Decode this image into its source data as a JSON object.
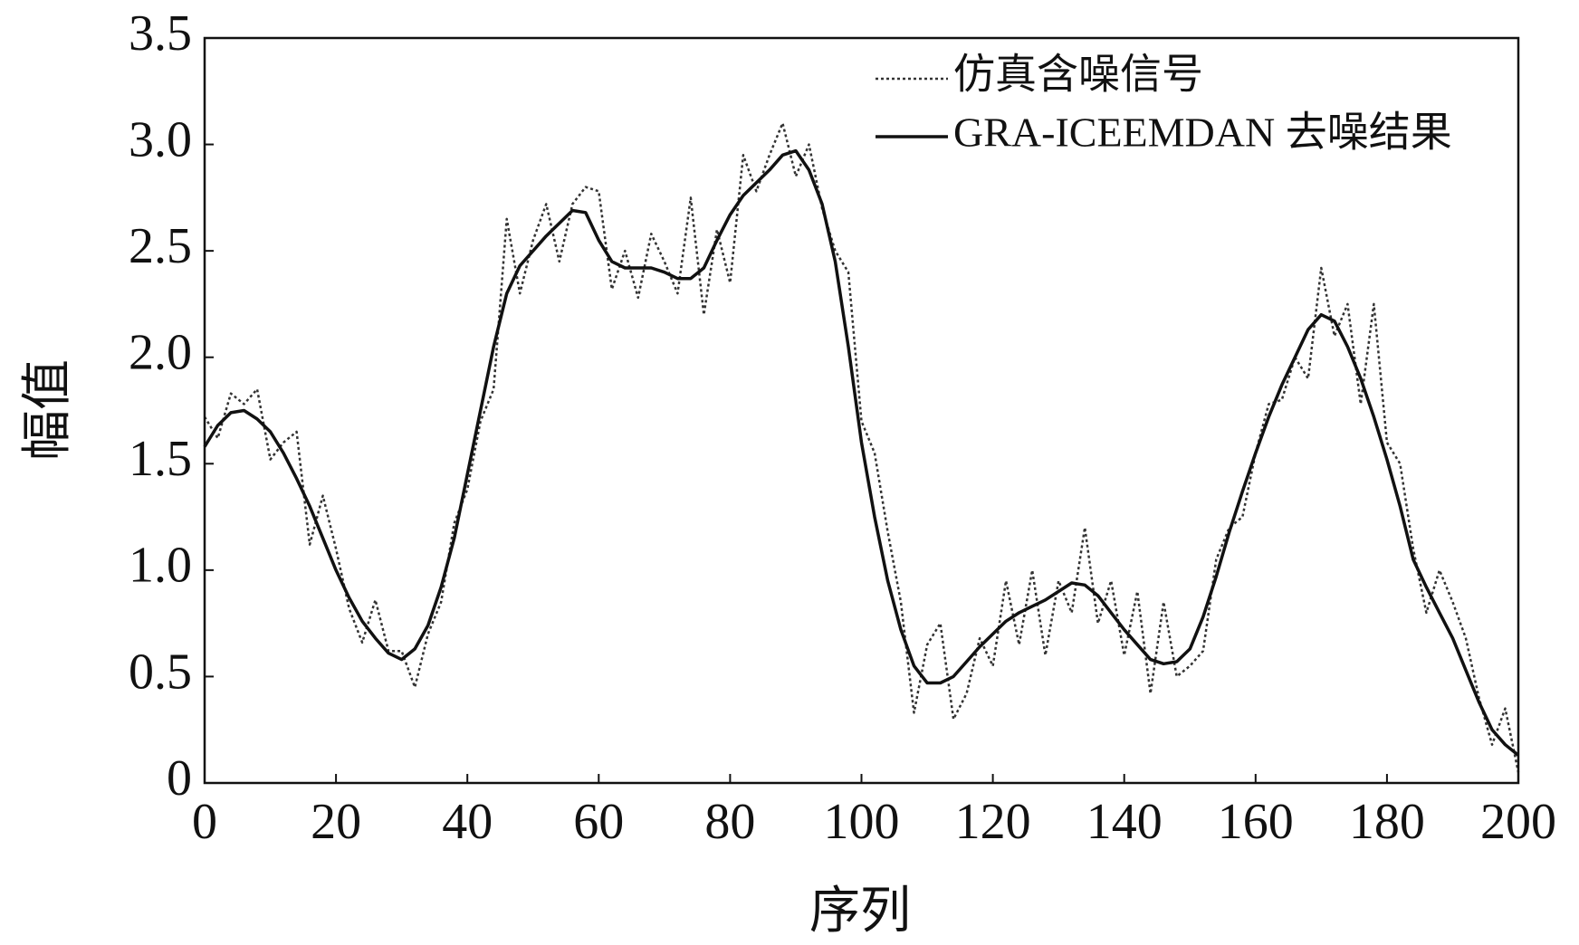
{
  "chart_data": {
    "type": "line",
    "xlabel": "序列",
    "ylabel": "幅值",
    "x": [
      0,
      2,
      4,
      6,
      8,
      10,
      12,
      14,
      16,
      18,
      20,
      22,
      24,
      26,
      28,
      30,
      32,
      34,
      36,
      38,
      40,
      42,
      44,
      46,
      48,
      50,
      52,
      54,
      56,
      58,
      60,
      62,
      64,
      66,
      68,
      70,
      72,
      74,
      76,
      78,
      80,
      82,
      84,
      86,
      88,
      90,
      92,
      94,
      96,
      98,
      100,
      102,
      104,
      106,
      108,
      110,
      112,
      114,
      116,
      118,
      120,
      122,
      124,
      126,
      128,
      130,
      132,
      134,
      136,
      138,
      140,
      142,
      144,
      146,
      148,
      150,
      152,
      154,
      156,
      158,
      160,
      162,
      164,
      166,
      168,
      170,
      172,
      174,
      176,
      178,
      180,
      182,
      184,
      186,
      188,
      190,
      192,
      194,
      196,
      198,
      200
    ],
    "series": [
      {
        "name": "仿真含噪信号",
        "color": "#333333",
        "style": "dotted",
        "values": [
          1.72,
          1.62,
          1.83,
          1.78,
          1.85,
          1.52,
          1.6,
          1.65,
          1.12,
          1.35,
          1.1,
          0.82,
          0.66,
          0.86,
          0.62,
          0.62,
          0.45,
          0.7,
          0.85,
          1.22,
          1.38,
          1.7,
          1.85,
          2.65,
          2.3,
          2.55,
          2.72,
          2.45,
          2.72,
          2.8,
          2.78,
          2.32,
          2.5,
          2.28,
          2.58,
          2.45,
          2.3,
          2.75,
          2.2,
          2.6,
          2.35,
          2.95,
          2.78,
          2.95,
          3.1,
          2.85,
          3.0,
          2.7,
          2.5,
          2.4,
          1.7,
          1.55,
          1.18,
          0.85,
          0.33,
          0.65,
          0.75,
          0.3,
          0.42,
          0.68,
          0.55,
          0.95,
          0.65,
          1.0,
          0.6,
          0.95,
          0.8,
          1.2,
          0.75,
          0.95,
          0.6,
          0.9,
          0.42,
          0.85,
          0.5,
          0.55,
          0.62,
          1.05,
          1.2,
          1.25,
          1.55,
          1.78,
          1.8,
          2.0,
          1.9,
          2.42,
          2.1,
          2.25,
          1.78,
          2.25,
          1.6,
          1.5,
          1.1,
          0.8,
          1.0,
          0.85,
          0.68,
          0.4,
          0.18,
          0.35,
          0.05
        ]
      },
      {
        "name": "GRA-ICEEMDAN 去噪结果",
        "color": "#111111",
        "style": "solid",
        "values": [
          1.58,
          1.68,
          1.74,
          1.75,
          1.71,
          1.65,
          1.55,
          1.43,
          1.3,
          1.15,
          1.0,
          0.87,
          0.76,
          0.68,
          0.61,
          0.58,
          0.63,
          0.74,
          0.92,
          1.15,
          1.45,
          1.75,
          2.05,
          2.3,
          2.43,
          2.5,
          2.57,
          2.63,
          2.69,
          2.68,
          2.55,
          2.45,
          2.42,
          2.42,
          2.42,
          2.4,
          2.37,
          2.37,
          2.42,
          2.55,
          2.67,
          2.76,
          2.82,
          2.88,
          2.95,
          2.97,
          2.88,
          2.72,
          2.45,
          2.05,
          1.6,
          1.25,
          0.95,
          0.72,
          0.55,
          0.47,
          0.47,
          0.5,
          0.57,
          0.64,
          0.7,
          0.76,
          0.8,
          0.83,
          0.86,
          0.9,
          0.94,
          0.93,
          0.88,
          0.8,
          0.72,
          0.65,
          0.58,
          0.56,
          0.57,
          0.63,
          0.78,
          0.97,
          1.18,
          1.37,
          1.55,
          1.72,
          1.87,
          2.0,
          2.13,
          2.2,
          2.17,
          2.05,
          1.9,
          1.72,
          1.52,
          1.3,
          1.05,
          0.92,
          0.8,
          0.68,
          0.53,
          0.38,
          0.25,
          0.18,
          0.13
        ]
      }
    ],
    "xlim": [
      0,
      200
    ],
    "xticks": [
      0,
      20,
      40,
      60,
      80,
      100,
      120,
      140,
      160,
      180,
      200
    ],
    "ylim": [
      0,
      3.5
    ],
    "yticks": [
      0,
      0.5,
      {
        "value": 1,
        "label": "1.0"
      },
      1.5,
      {
        "value": 2,
        "label": "2.0"
      },
      2.5,
      {
        "value": 3,
        "label": "3.0"
      },
      3.5
    ],
    "grid": false,
    "legend": "upper right"
  }
}
